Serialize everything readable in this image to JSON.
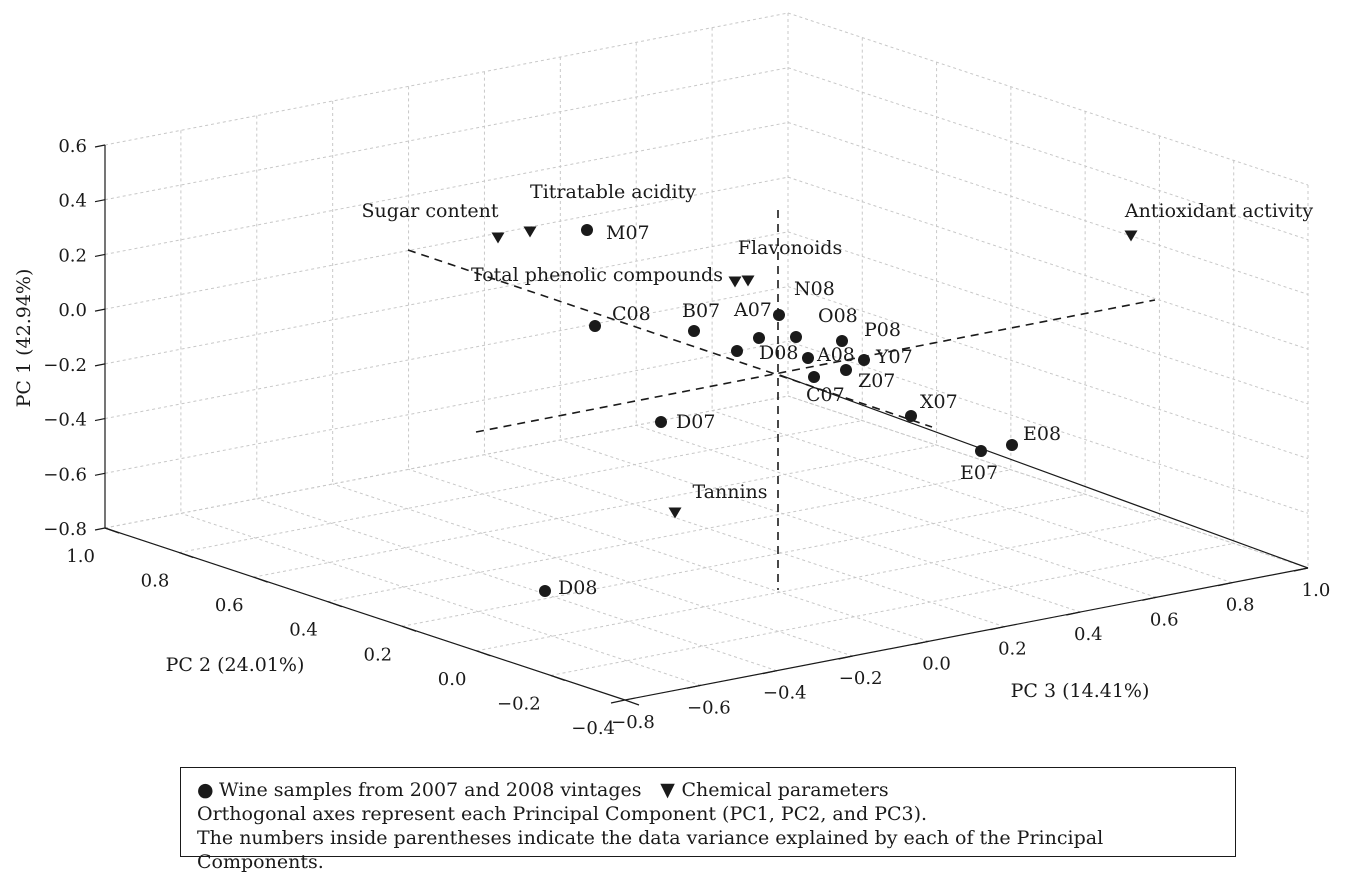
{
  "chart_data": {
    "type": "scatter",
    "axes": {
      "pc1": {
        "label": "PC 1 (42.94%)",
        "ticks": [
          "0.6",
          "0.4",
          "0.2",
          "0.0",
          "−0.2",
          "−0.4",
          "−0.6",
          "−0.8"
        ]
      },
      "pc2": {
        "label": "PC 2 (24.01%)",
        "ticks": [
          "1.0",
          "0.8",
          "0.6",
          "0.4",
          "0.2",
          "0.0",
          "−0.2",
          "−0.4"
        ]
      },
      "pc3": {
        "label": "PC 3 (14.41%)",
        "ticks": [
          "−0.8",
          "−0.6",
          "−0.4",
          "−0.2",
          "0.0",
          "0.2",
          "0.4",
          "0.6",
          "0.8",
          "1.0"
        ]
      }
    },
    "series": [
      {
        "name": "Wine samples from 2007 and 2008 vintages",
        "marker": "circle",
        "points": [
          {
            "label": "M07",
            "pc1": 0.28
          },
          {
            "label": "C08",
            "pc1": -0.07
          },
          {
            "label": "B07",
            "pc1": -0.09
          },
          {
            "label": "A07",
            "pc1": -0.11
          },
          {
            "label": "N08",
            "pc1": -0.03
          },
          {
            "label": "O08",
            "pc1": -0.11
          },
          {
            "label": "P08",
            "pc1": -0.12
          },
          {
            "label": "D08",
            "pc1": -0.16
          },
          {
            "label": "A08",
            "pc1": -0.19
          },
          {
            "label": "Y07",
            "pc1": -0.19
          },
          {
            "label": "Z07",
            "pc1": -0.24
          },
          {
            "label": "C07",
            "pc1": -0.25
          },
          {
            "label": "X07",
            "pc1": -0.4
          },
          {
            "label": "D07",
            "pc1": -0.42
          },
          {
            "label": "E08",
            "pc1": -0.51
          },
          {
            "label": "E07",
            "pc1": -0.53
          },
          {
            "label": "D08",
            "pc1": -1.0
          }
        ]
      },
      {
        "name": "Chemical parameters",
        "marker": "triangle-down",
        "points": [
          {
            "label": "Sugar content",
            "pc1": 0.25
          },
          {
            "label": "Titratable acidity",
            "pc1": 0.28
          },
          {
            "label": "Total phenolic compounds",
            "pc1": 0.1
          },
          {
            "label": "Flavonoids",
            "pc1": 0.11
          },
          {
            "label": "Antioxidant activity",
            "pc1": 0.26
          },
          {
            "label": "Tannins",
            "pc1": -0.75
          }
        ]
      }
    ]
  },
  "legend": {
    "circle_symbol": "●",
    "circle_label": "Wine samples from 2007 and 2008 vintages",
    "triangle_symbol": "▼",
    "triangle_label": "Chemical parameters",
    "note1": "Orthogonal axes represent each Principal Component (PC1, PC2, and PC3).",
    "note2": "The numbers inside parentheses indicate the data variance explained by each of the Principal Components."
  }
}
